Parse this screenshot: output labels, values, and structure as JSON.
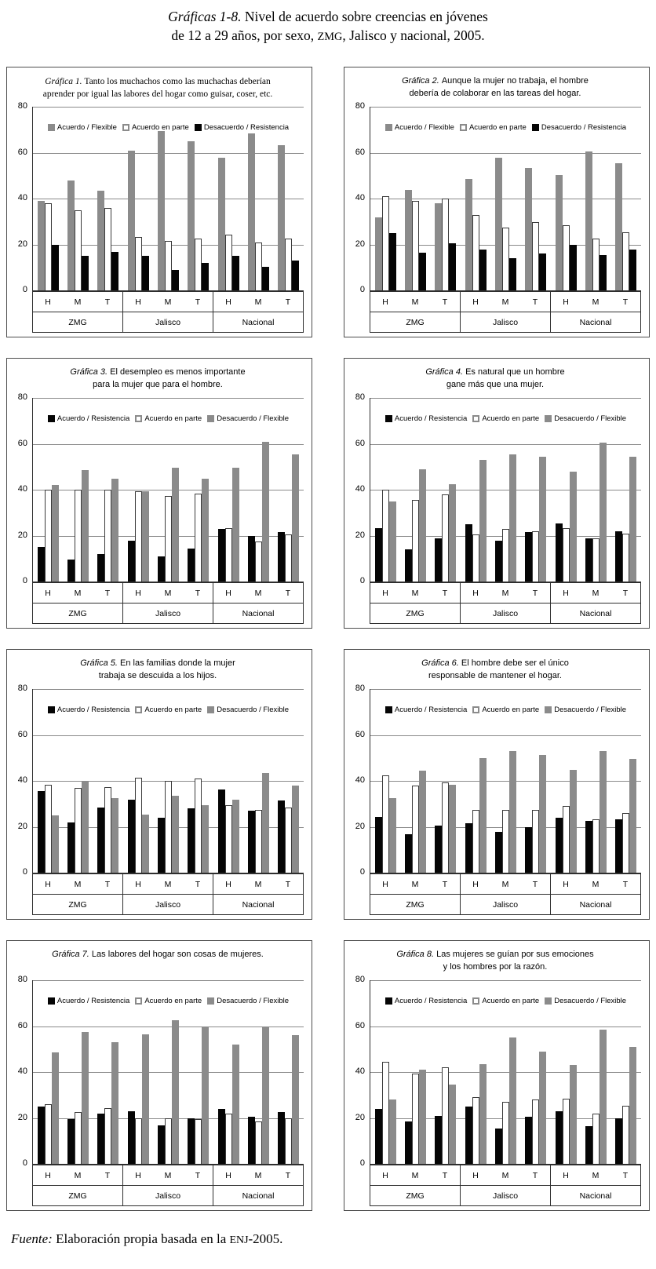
{
  "header": {
    "title_italic": "Gráficas 1-8.",
    "title_rest": " Nivel de acuerdo sobre creencias en jóvenes",
    "title_line2_pre": "de 12 a 29 años, por sexo, ",
    "title_line2_acronym": "ZMG",
    "title_line2_post": ", Jalisco y nacional, 2005."
  },
  "footer": {
    "label": "Fuente:",
    "text_pre": " Elaboración propia basada en la ",
    "acronym": "ENJ",
    "text_post": "-2005."
  },
  "colors": {
    "bar_gray": "#8b8b8b",
    "bar_white": "#ffffff",
    "bar_black": "#050505",
    "grid_line": "#8a8a8a",
    "axis_line": "#2e2e2e",
    "panel_border": "#4d4d4d"
  },
  "chart_data": [
    {
      "type": "bar",
      "title_prefix": "Gráfica 1.",
      "title_line1": "Tanto los muchachos como las muchachas deberían",
      "title_line2": "aprender por igual las labores del hogar como guisar, coser, etc.",
      "legend": [
        {
          "label": "Acuerdo / Flexible",
          "style": "gray"
        },
        {
          "label": "Acuerdo en parte",
          "style": "white"
        },
        {
          "label": "Desacuerdo / Resistencia",
          "style": "black"
        }
      ],
      "categories": [
        "H",
        "M",
        "T"
      ],
      "regions": [
        "ZMG",
        "Jalisco",
        "Nacional"
      ],
      "ylim": [
        0,
        80
      ],
      "yticks": [
        0,
        20,
        40,
        60,
        80
      ],
      "values": [
        [
          [
            39,
            38,
            20
          ],
          [
            48,
            35,
            15
          ],
          [
            43.5,
            36,
            17
          ]
        ],
        [
          [
            61,
            23.5,
            15
          ],
          [
            69.5,
            21.5,
            9
          ],
          [
            65,
            22.5,
            12
          ]
        ],
        [
          [
            58,
            24.5,
            15
          ],
          [
            68.5,
            21,
            10.5
          ],
          [
            63.5,
            22.5,
            13
          ]
        ]
      ]
    },
    {
      "type": "bar",
      "title_prefix": "Gráfica 2.",
      "title_line1": "Aunque la mujer no trabaja, el hombre",
      "title_line2": "debería de colaborar en las tareas del hogar.",
      "legend": [
        {
          "label": "Acuerdo / Flexible",
          "style": "gray"
        },
        {
          "label": "Acuerdo en parte",
          "style": "white"
        },
        {
          "label": "Desacuerdo / Resistencia",
          "style": "black"
        }
      ],
      "categories": [
        "H",
        "M",
        "T"
      ],
      "regions": [
        "ZMG",
        "Jalisco",
        "Nacional"
      ],
      "ylim": [
        0,
        80
      ],
      "yticks": [
        0,
        20,
        40,
        60,
        80
      ],
      "values": [
        [
          [
            32,
            41,
            25
          ],
          [
            44,
            39,
            16.5
          ],
          [
            38,
            40,
            20.5
          ]
        ],
        [
          [
            48.5,
            33,
            18
          ],
          [
            58,
            27.5,
            14
          ],
          [
            53.5,
            30,
            16
          ]
        ],
        [
          [
            50.5,
            28.5,
            20
          ],
          [
            60.5,
            22.5,
            15.5
          ],
          [
            55.5,
            25.5,
            18
          ]
        ]
      ]
    },
    {
      "type": "bar",
      "title_prefix": "Gráfica 3.",
      "title_line1": "El desempleo es menos importante",
      "title_line2": "para la mujer que para el hombre.",
      "legend": [
        {
          "label": "Acuerdo / Resistencia",
          "style": "black"
        },
        {
          "label": "Acuerdo en parte",
          "style": "white"
        },
        {
          "label": "Desacuerdo / Flexible",
          "style": "gray"
        }
      ],
      "categories": [
        "H",
        "M",
        "T"
      ],
      "regions": [
        "ZMG",
        "Jalisco",
        "Nacional"
      ],
      "ylim": [
        0,
        80
      ],
      "yticks": [
        0,
        20,
        40,
        60,
        80
      ],
      "values": [
        [
          [
            15,
            40,
            42
          ],
          [
            9.5,
            40,
            48.5
          ],
          [
            12,
            40,
            45
          ]
        ],
        [
          [
            18,
            39.5,
            39.5
          ],
          [
            11,
            37.5,
            49.5
          ],
          [
            14.5,
            38.5,
            45
          ]
        ],
        [
          [
            23,
            23.5,
            49.5
          ],
          [
            20,
            17.5,
            61
          ],
          [
            21.5,
            20.5,
            55.5
          ]
        ]
      ]
    },
    {
      "type": "bar",
      "title_prefix": "Gráfica 4.",
      "title_line1": "Es natural que un hombre",
      "title_line2": "gane más que una mujer.",
      "legend": [
        {
          "label": "Acuerdo / Resistencia",
          "style": "black"
        },
        {
          "label": "Acuerdo en parte",
          "style": "white"
        },
        {
          "label": "Desacuerdo / Flexible",
          "style": "gray"
        }
      ],
      "categories": [
        "H",
        "M",
        "T"
      ],
      "regions": [
        "ZMG",
        "Jalisco",
        "Nacional"
      ],
      "ylim": [
        0,
        80
      ],
      "yticks": [
        0,
        20,
        40,
        60,
        80
      ],
      "values": [
        [
          [
            23.5,
            40,
            35
          ],
          [
            14,
            35.5,
            49
          ],
          [
            19,
            38,
            42.5
          ]
        ],
        [
          [
            25,
            20.5,
            53
          ],
          [
            18,
            23,
            55.5
          ],
          [
            21.5,
            22,
            54.5
          ]
        ],
        [
          [
            25.5,
            23.5,
            48
          ],
          [
            19,
            19,
            60.5
          ],
          [
            22,
            21,
            54.5
          ]
        ]
      ]
    },
    {
      "type": "bar",
      "title_prefix": "Gráfica 5.",
      "title_line1": "En las familias donde la mujer",
      "title_line2": "trabaja se descuida a los hijos.",
      "legend": [
        {
          "label": "Acuerdo / Resistencia",
          "style": "black"
        },
        {
          "label": "Acuerdo en parte",
          "style": "white"
        },
        {
          "label": "Desacuerdo / Flexible",
          "style": "gray"
        }
      ],
      "categories": [
        "H",
        "M",
        "T"
      ],
      "regions": [
        "ZMG",
        "Jalisco",
        "Nacional"
      ],
      "ylim": [
        0,
        80
      ],
      "yticks": [
        0,
        20,
        40,
        60,
        80
      ],
      "values": [
        [
          [
            35.5,
            38.5,
            25
          ],
          [
            22,
            37,
            40
          ],
          [
            28.5,
            37.5,
            32.5
          ]
        ],
        [
          [
            32,
            41.5,
            25.5
          ],
          [
            24,
            40,
            33.5
          ],
          [
            28,
            41,
            29.5
          ]
        ],
        [
          [
            36.5,
            29.5,
            32
          ],
          [
            27,
            27.5,
            43.5
          ],
          [
            31.5,
            28.5,
            38
          ]
        ]
      ]
    },
    {
      "type": "bar",
      "title_prefix": "Gráfica 6.",
      "title_line1": "El hombre debe ser el único",
      "title_line2": "responsable de mantener el hogar.",
      "legend": [
        {
          "label": "Acuerdo / Resistencia",
          "style": "black"
        },
        {
          "label": "Acuerdo en parte",
          "style": "white"
        },
        {
          "label": "Desacuerdo / Flexible",
          "style": "gray"
        }
      ],
      "categories": [
        "H",
        "M",
        "T"
      ],
      "regions": [
        "ZMG",
        "Jalisco",
        "Nacional"
      ],
      "ylim": [
        0,
        80
      ],
      "yticks": [
        0,
        20,
        40,
        60,
        80
      ],
      "values": [
        [
          [
            24.5,
            42.5,
            32.5
          ],
          [
            17,
            38,
            44.5
          ],
          [
            20.5,
            39.5,
            38.5
          ]
        ],
        [
          [
            21.5,
            27.5,
            50
          ],
          [
            18,
            27.5,
            53
          ],
          [
            20,
            27.5,
            51.5
          ]
        ],
        [
          [
            24,
            29,
            45
          ],
          [
            22.5,
            23.5,
            53
          ],
          [
            23.5,
            26,
            49.5
          ]
        ]
      ]
    },
    {
      "type": "bar",
      "title_prefix": "Gráfica 7.",
      "title_line1": "Las labores del hogar son cosas de mujeres.",
      "title_line2": null,
      "legend": [
        {
          "label": "Acuerdo / Resistencia",
          "style": "black"
        },
        {
          "label": "Acuerdo en parte",
          "style": "white"
        },
        {
          "label": "Desacuerdo / Flexible",
          "style": "gray"
        }
      ],
      "categories": [
        "H",
        "M",
        "T"
      ],
      "regions": [
        "ZMG",
        "Jalisco",
        "Nacional"
      ],
      "ylim": [
        0,
        80
      ],
      "yticks": [
        0,
        20,
        40,
        60,
        80
      ],
      "values": [
        [
          [
            25,
            26,
            48.5
          ],
          [
            19.5,
            22.5,
            57.5
          ],
          [
            22,
            24.5,
            53
          ]
        ],
        [
          [
            23,
            20,
            56.5
          ],
          [
            17,
            20,
            62.5
          ],
          [
            20,
            19.5,
            59.5
          ]
        ],
        [
          [
            24,
            22,
            52
          ],
          [
            20.5,
            18.5,
            60
          ],
          [
            22.5,
            20,
            56
          ]
        ]
      ]
    },
    {
      "type": "bar",
      "title_prefix": "Gráfica 8.",
      "title_line1": "Las mujeres se guían por sus emociones",
      "title_line2": "y los hombres por la razón.",
      "legend": [
        {
          "label": "Acuerdo / Resistencia",
          "style": "black"
        },
        {
          "label": "Acuerdo en parte",
          "style": "white"
        },
        {
          "label": "Desacuerdo / Flexible",
          "style": "gray"
        }
      ],
      "categories": [
        "H",
        "M",
        "T"
      ],
      "regions": [
        "ZMG",
        "Jalisco",
        "Nacional"
      ],
      "ylim": [
        0,
        80
      ],
      "yticks": [
        0,
        20,
        40,
        60,
        80
      ],
      "values": [
        [
          [
            24,
            44.5,
            28
          ],
          [
            18.5,
            39.5,
            41
          ],
          [
            21,
            42,
            34.5
          ]
        ],
        [
          [
            25,
            29,
            43.5
          ],
          [
            15.5,
            27,
            55
          ],
          [
            20.5,
            28,
            49
          ]
        ],
        [
          [
            23,
            28.5,
            43
          ],
          [
            16.5,
            22,
            58.5
          ],
          [
            20,
            25.5,
            51
          ]
        ]
      ]
    }
  ]
}
